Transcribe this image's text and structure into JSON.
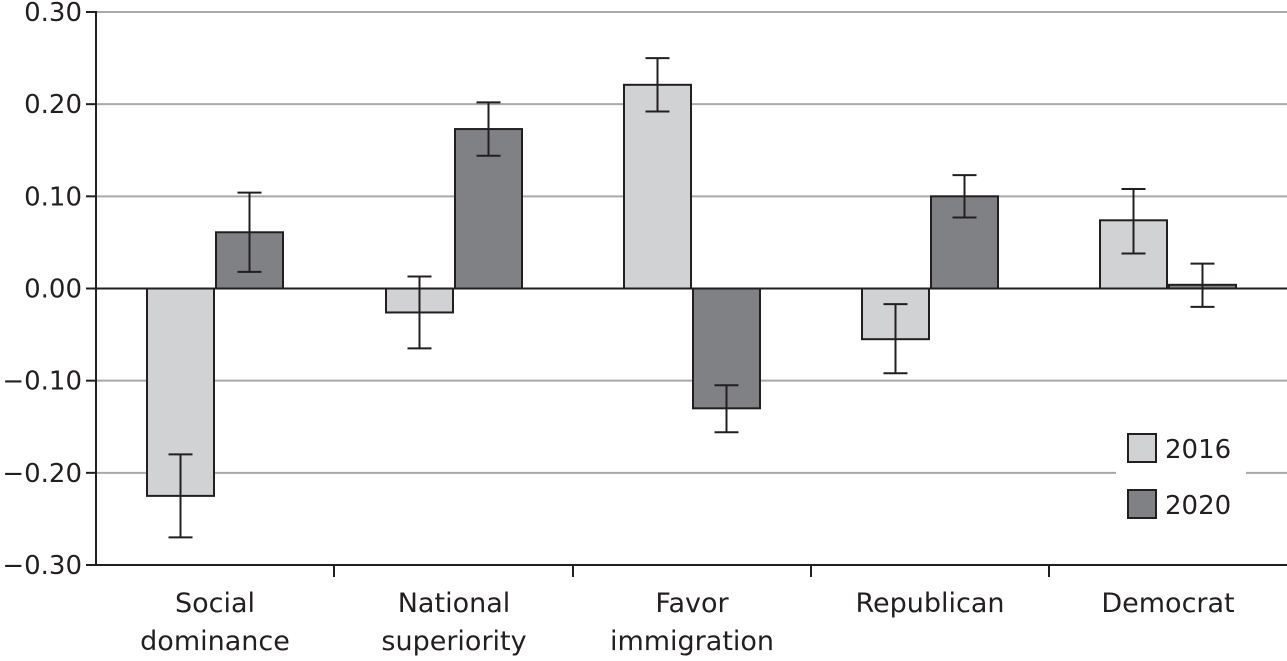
{
  "chart_data": {
    "type": "bar",
    "title": "",
    "xlabel": "",
    "ylabel": "",
    "categories": [
      [
        "Social",
        "dominance"
      ],
      [
        "National",
        "superiority"
      ],
      [
        "Favor",
        "immigration"
      ],
      [
        "Republican"
      ],
      [
        "Democrat"
      ]
    ],
    "series": [
      {
        "name": "2016",
        "color": "#d1d2d4",
        "values": [
          -0.225,
          -0.026,
          0.221,
          -0.055,
          0.074
        ],
        "error_low": [
          -0.27,
          -0.065,
          0.192,
          -0.092,
          0.038
        ],
        "error_high": [
          -0.18,
          0.013,
          0.25,
          -0.017,
          0.108
        ]
      },
      {
        "name": "2020",
        "color": "#808184",
        "values": [
          0.061,
          0.173,
          -0.13,
          0.1,
          0.004
        ],
        "error_low": [
          0.018,
          0.144,
          -0.156,
          0.077,
          -0.02
        ],
        "error_high": [
          0.104,
          0.202,
          -0.105,
          0.123,
          0.027
        ]
      }
    ],
    "ylim": [
      -0.3,
      0.3
    ],
    "yticks": [
      0.3,
      0.2,
      0.1,
      0.0,
      -0.1,
      -0.2,
      -0.3
    ],
    "ytick_labels": [
      "0.30",
      "0.20",
      "0.10",
      "0.00",
      "−0.10",
      "−0.20",
      "−0.30"
    ],
    "grid": true,
    "legend_position": "bottom-right",
    "colors": {
      "axis": "#231f20",
      "grid": "#a7a9ac",
      "bar_outline": "#231f20"
    }
  }
}
